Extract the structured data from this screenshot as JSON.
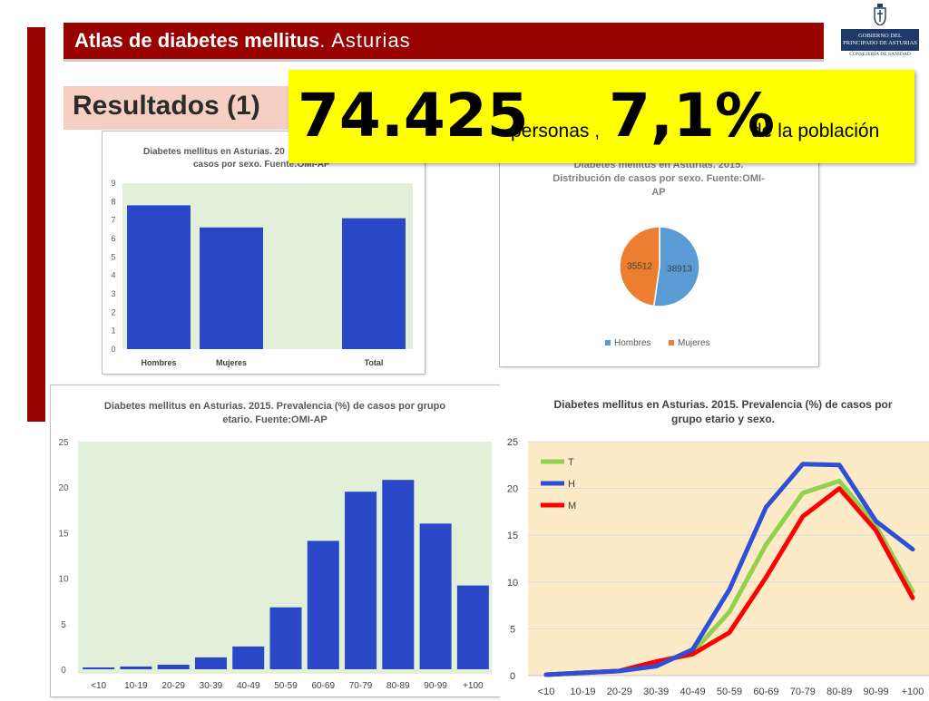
{
  "header": {
    "title_bold": "Atlas de diabetes mellitus",
    "title_rest": ". Asturias"
  },
  "logo": {
    "line1": "GOBIERNO DEL",
    "line2": "PRINCIPADO DE ASTURIAS",
    "line3": "CONSEJERÍA DE SANIDAD"
  },
  "subtitle": "Resultados (1)",
  "highlight": {
    "number": "74.425",
    "number_label": "personas ,",
    "percent": "7,1%",
    "percent_label": "de la población"
  },
  "colors": {
    "brand_red": "#990000",
    "bar_blue": "#2a47c8",
    "highlight_yellow": "#ffff00",
    "pie_blue": "#5b9bd5",
    "pie_orange": "#ed7d31",
    "line_T": "#92d050",
    "line_H": "#2e4fd6",
    "line_M": "#ff0000"
  },
  "chart_data": [
    {
      "type": "bar",
      "title": "Diabetes mellitus en Asturias. 20",
      "title_line2": "casos por sexo. Fuente:OMI-AP",
      "categories": [
        "Hombres",
        "Mujeres",
        "Total"
      ],
      "values": [
        7.8,
        6.6,
        7.1
      ],
      "ylim": [
        0,
        9
      ],
      "yticks": [
        0,
        1,
        2,
        3,
        4,
        5,
        6,
        7,
        8,
        9
      ],
      "grid": false
    },
    {
      "type": "pie",
      "title_line1": "Diabetes mellitus en Asturias. 2015.",
      "title_line2": "Distribución de casos por sexo. Fuente:OMI-",
      "title_line3": "AP",
      "slices": [
        {
          "label": "Hombres",
          "value": 38913
        },
        {
          "label": "Mujeres",
          "value": 35512
        }
      ],
      "legend": "bottom"
    },
    {
      "type": "bar",
      "title_line1": "Diabetes mellitus en Asturias. 2015. Prevalencia (%) de casos por grupo",
      "title_line2": "etario. Fuente:OMI-AP",
      "categories": [
        "<10",
        "10-19",
        "20-29",
        "30-39",
        "40-49",
        "50-59",
        "60-69",
        "70-79",
        "80-89",
        "90-99",
        "+100"
      ],
      "values": [
        0.2,
        0.3,
        0.5,
        1.3,
        2.5,
        6.8,
        14.1,
        19.5,
        20.8,
        16.0,
        9.2
      ],
      "ylim": [
        0,
        25
      ],
      "yticks": [
        0,
        5,
        10,
        15,
        20,
        25
      ],
      "grid": false
    },
    {
      "type": "line",
      "title_line1": "Diabetes mellitus en Asturias. 2015. Prevalencia (%) de casos por",
      "title_line2": "grupo etario y sexo.",
      "categories": [
        "<10",
        "10-19",
        "20-29",
        "30-39",
        "40-49",
        "50-59",
        "60-69",
        "70-79",
        "80-89",
        "90-99",
        "+100"
      ],
      "series": [
        {
          "name": "T",
          "values": [
            0.1,
            0.3,
            0.5,
            1.3,
            2.5,
            6.8,
            14.0,
            19.5,
            20.8,
            16.0,
            9.0
          ]
        },
        {
          "name": "H",
          "values": [
            0.1,
            0.3,
            0.5,
            1.0,
            2.8,
            9.2,
            18.0,
            22.6,
            22.5,
            16.5,
            13.5
          ]
        },
        {
          "name": "M",
          "values": [
            0.1,
            0.3,
            0.5,
            1.5,
            2.3,
            4.6,
            10.5,
            17.0,
            20.0,
            15.5,
            8.3
          ]
        }
      ],
      "ylim": [
        0,
        25
      ],
      "yticks": [
        0,
        5,
        10,
        15,
        20,
        25
      ],
      "grid": true,
      "legend": "top-left"
    }
  ]
}
